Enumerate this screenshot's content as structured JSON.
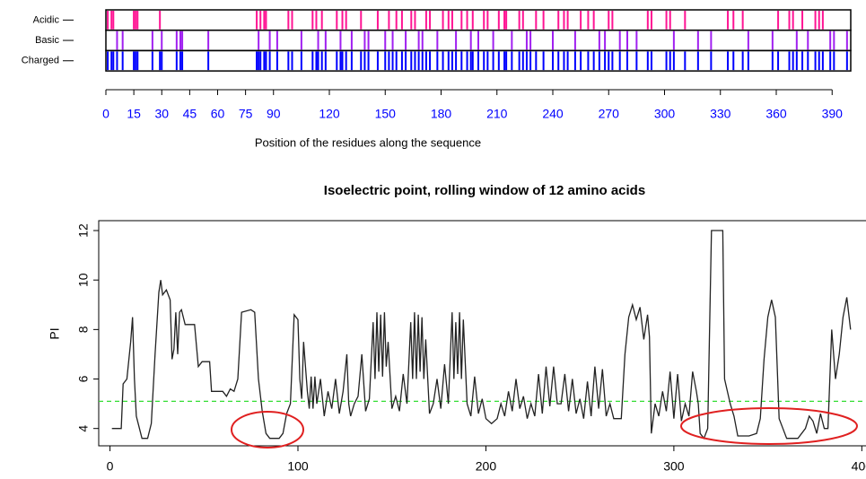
{
  "chart_data": [
    {
      "type": "track",
      "xlabel": "Position of the residues along the sequence",
      "xlim": [
        0,
        400
      ],
      "xticks": [
        0,
        15,
        30,
        45,
        60,
        75,
        90,
        120,
        150,
        180,
        210,
        240,
        270,
        300,
        330,
        360,
        390
      ],
      "tick_label_color": "#0000ff",
      "tracks": [
        {
          "name": "Acidic",
          "color": "#ff1493",
          "positions": [
            1,
            3,
            4,
            15,
            16,
            17,
            29,
            81,
            83,
            85,
            86,
            98,
            100,
            111,
            113,
            116,
            124,
            127,
            129,
            137,
            146,
            152,
            156,
            159,
            164,
            166,
            172,
            174,
            181,
            184,
            186,
            191,
            194,
            197,
            203,
            205,
            211,
            214,
            215,
            222,
            224,
            231,
            235,
            243,
            246,
            248,
            255,
            259,
            262,
            270,
            272,
            291,
            293,
            301,
            303,
            311,
            334,
            337,
            342,
            361,
            367,
            369,
            374,
            381,
            383,
            385
          ]
        },
        {
          "name": "Basic",
          "color": "#a020f0",
          "positions": [
            6,
            9,
            25,
            30,
            38,
            40,
            41,
            55,
            82,
            88,
            92,
            105,
            114,
            118,
            126,
            132,
            139,
            141,
            150,
            154,
            161,
            168,
            170,
            178,
            188,
            196,
            200,
            208,
            218,
            226,
            228,
            240,
            252,
            265,
            268,
            276,
            280,
            285,
            305,
            318,
            325,
            345,
            358,
            371,
            377,
            389,
            391,
            398
          ]
        },
        {
          "name": "Charged",
          "color": "#0000ff",
          "positions": [
            1,
            3,
            4,
            6,
            9,
            15,
            16,
            17,
            25,
            29,
            30,
            38,
            40,
            41,
            55,
            81,
            82,
            83,
            85,
            86,
            88,
            92,
            98,
            100,
            105,
            111,
            113,
            114,
            116,
            118,
            124,
            126,
            127,
            129,
            132,
            137,
            139,
            141,
            146,
            150,
            152,
            154,
            156,
            159,
            161,
            164,
            166,
            168,
            170,
            172,
            174,
            178,
            181,
            184,
            186,
            188,
            191,
            194,
            196,
            197,
            200,
            203,
            205,
            208,
            211,
            214,
            215,
            218,
            222,
            224,
            226,
            228,
            231,
            235,
            240,
            243,
            246,
            248,
            252,
            255,
            259,
            262,
            265,
            268,
            270,
            272,
            276,
            280,
            285,
            291,
            293,
            301,
            303,
            305,
            311,
            318,
            325,
            334,
            337,
            342,
            345,
            358,
            361,
            367,
            369,
            371,
            374,
            377,
            381,
            383,
            385,
            389,
            391,
            398
          ]
        }
      ]
    },
    {
      "type": "line",
      "title": "Isoelectric point, rolling window of 12 amino acids",
      "ylabel": "PI",
      "xlim": [
        -6,
        407
      ],
      "ylim": [
        3.3,
        12.4
      ],
      "xticks": [
        0,
        100,
        200,
        300,
        400
      ],
      "yticks": [
        4,
        6,
        8,
        10,
        12
      ],
      "threshold": 5.1,
      "threshold_color": "#33dd33",
      "x": [
        1,
        6,
        7,
        9,
        11,
        12,
        13,
        14,
        15,
        17,
        20,
        22,
        24,
        26,
        27,
        28,
        30,
        32,
        33,
        34,
        35,
        36,
        37,
        38,
        40,
        45,
        47,
        49,
        53,
        54,
        60,
        62,
        64,
        66,
        68,
        70,
        75,
        77,
        79,
        81,
        83,
        85,
        90,
        92,
        94,
        96,
        98,
        100,
        101,
        102,
        103,
        105,
        106,
        107,
        108,
        109,
        110,
        112,
        114,
        116,
        118,
        120,
        122,
        124,
        126,
        127,
        128,
        130,
        132,
        134,
        136,
        138,
        140,
        141,
        142,
        143,
        144,
        145,
        146,
        147,
        148,
        150,
        152,
        154,
        156,
        158,
        160,
        161,
        162,
        163,
        164,
        165,
        166,
        167,
        168,
        170,
        172,
        174,
        176,
        178,
        180,
        182,
        183,
        184,
        185,
        186,
        187,
        188,
        190,
        192,
        194,
        196,
        198,
        200,
        203,
        206,
        208,
        210,
        212,
        214,
        216,
        218,
        220,
        222,
        224,
        226,
        228,
        230,
        232,
        234,
        236,
        238,
        240,
        242,
        244,
        246,
        248,
        250,
        252,
        254,
        256,
        258,
        260,
        262,
        264,
        266,
        268,
        272,
        274,
        276,
        278,
        280,
        282,
        284,
        286,
        287,
        288,
        290,
        292,
        294,
        296,
        298,
        300,
        302,
        304,
        306,
        308,
        310,
        312,
        313,
        314,
        316,
        318,
        320,
        326,
        327,
        330,
        332,
        334,
        340,
        344,
        346,
        348,
        350,
        352,
        354,
        356,
        358,
        360,
        366,
        370,
        372,
        374,
        376,
        378,
        380,
        382,
        384,
        386,
        388,
        390,
        392,
        394
      ],
      "series": [
        {
          "name": "PI",
          "color": "#222222",
          "values": [
            4.0,
            4.0,
            5.8,
            6.0,
            7.5,
            8.5,
            6.0,
            4.5,
            4.2,
            3.6,
            3.6,
            4.2,
            7.0,
            9.5,
            10.0,
            9.4,
            9.6,
            9.2,
            6.8,
            7.2,
            8.7,
            7.0,
            8.7,
            8.8,
            8.2,
            8.2,
            6.5,
            6.7,
            6.7,
            5.5,
            5.5,
            5.3,
            5.6,
            5.5,
            6.0,
            8.7,
            8.8,
            8.7,
            6.0,
            4.7,
            3.8,
            3.6,
            3.6,
            3.8,
            4.6,
            5.0,
            8.6,
            8.4,
            6.0,
            5.2,
            7.5,
            5.5,
            4.8,
            6.1,
            4.8,
            6.1,
            5.0,
            6.0,
            4.5,
            5.5,
            4.8,
            6.0,
            4.6,
            5.5,
            7.0,
            5.0,
            4.5,
            5.0,
            5.3,
            7.0,
            4.7,
            5.2,
            8.3,
            6.0,
            8.7,
            6.3,
            8.6,
            6.1,
            8.7,
            6.5,
            7.5,
            4.8,
            5.3,
            4.7,
            6.2,
            5.0,
            8.3,
            6.0,
            8.7,
            6.0,
            8.6,
            6.3,
            8.5,
            6.0,
            7.6,
            4.6,
            5.0,
            6.0,
            4.8,
            6.6,
            5.0,
            8.7,
            6.0,
            8.3,
            6.2,
            8.7,
            6.0,
            8.4,
            5.0,
            4.5,
            6.1,
            4.6,
            5.2,
            4.4,
            4.2,
            4.4,
            5.0,
            4.5,
            5.5,
            4.7,
            6.0,
            4.8,
            5.3,
            4.4,
            5.0,
            4.5,
            6.2,
            4.6,
            6.5,
            4.9,
            6.5,
            5.0,
            5.0,
            6.2,
            4.7,
            6.0,
            4.6,
            5.2,
            4.4,
            5.9,
            4.5,
            6.5,
            4.8,
            6.4,
            4.5,
            5.0,
            4.4,
            4.4,
            7.0,
            8.5,
            9.0,
            8.4,
            8.9,
            7.6,
            8.6,
            7.7,
            3.8,
            5.0,
            4.5,
            5.5,
            4.7,
            6.3,
            4.4,
            6.2,
            4.3,
            5.0,
            4.5,
            6.3,
            5.5,
            5.0,
            3.8,
            3.6,
            4.0,
            12.0,
            12.0,
            6.0,
            5.0,
            4.5,
            3.7,
            3.7,
            3.8,
            4.4,
            6.8,
            8.5,
            9.2,
            8.5,
            4.4,
            4.0,
            3.6,
            3.6,
            4.0,
            4.5,
            4.3,
            3.8,
            4.6,
            4.0,
            4.0,
            8.0,
            6.0,
            7.0,
            8.5,
            9.3,
            8.0
          ]
        }
      ]
    }
  ]
}
